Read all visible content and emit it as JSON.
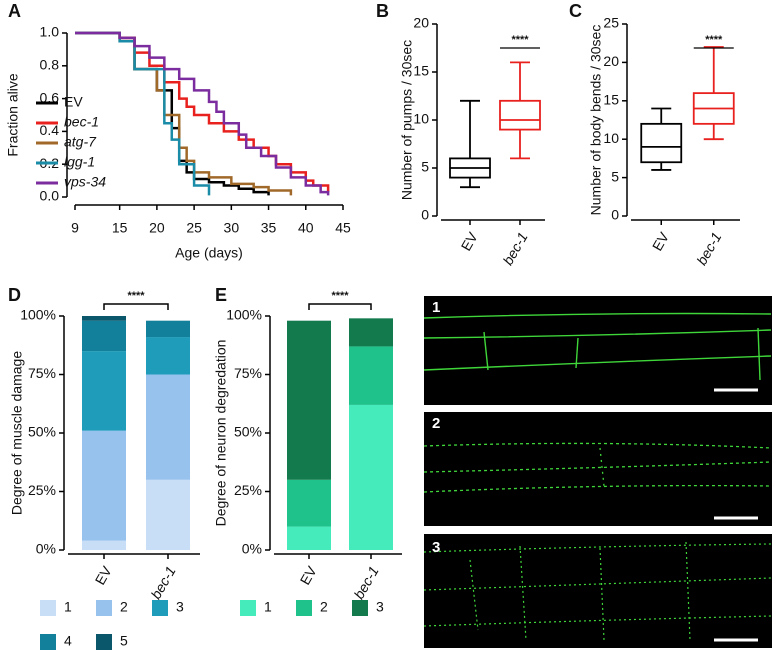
{
  "chart_data": [
    {
      "type": "line",
      "label": "A",
      "x_label": "Age (days)",
      "y_label": "Fraction alive",
      "xlim": [
        9,
        45
      ],
      "xticks": [
        9,
        15,
        20,
        25,
        30,
        35,
        40,
        45
      ],
      "ylim": [
        0,
        1
      ],
      "yticks": [
        {
          "value": 0,
          "label": "0.0"
        },
        {
          "value": 0.2,
          "label": "0.2"
        },
        {
          "value": 0.4,
          "label": "0.4"
        },
        {
          "value": 0.6,
          "label": "0.6"
        },
        {
          "value": 0.8,
          "label": "0.8"
        },
        {
          "value": 1,
          "label": "1.0"
        }
      ],
      "legend": "left",
      "series": [
        {
          "name": "EV",
          "color": "#000000",
          "x": [
            9,
            15,
            17,
            20,
            22,
            23,
            24,
            25,
            27,
            29,
            31,
            33,
            35
          ],
          "values": [
            1,
            0.97,
            0.78,
            0.65,
            0.42,
            0.22,
            0.15,
            0.11,
            0.09,
            0.07,
            0.05,
            0.03,
            0.01
          ]
        },
        {
          "name": "bec-1",
          "color": "#e8201e",
          "x": [
            9,
            15,
            17,
            19,
            21,
            23,
            24,
            25,
            27,
            29,
            31,
            33,
            35,
            36,
            38,
            40,
            41,
            43
          ],
          "values": [
            1,
            0.97,
            0.88,
            0.8,
            0.7,
            0.6,
            0.55,
            0.5,
            0.45,
            0.4,
            0.35,
            0.3,
            0.25,
            0.2,
            0.15,
            0.1,
            0.07,
            0.03
          ]
        },
        {
          "name": "atg-7",
          "color": "#a0692a",
          "x": [
            9,
            15,
            17,
            20,
            21,
            23,
            24,
            25,
            27,
            30,
            33,
            35,
            38
          ],
          "values": [
            1,
            0.95,
            0.78,
            0.65,
            0.5,
            0.3,
            0.22,
            0.15,
            0.12,
            0.08,
            0.06,
            0.04,
            0.01
          ]
        },
        {
          "name": "lgg-1",
          "color": "#1a8ca8",
          "x": [
            9,
            15,
            17,
            21,
            22,
            23,
            25,
            27
          ],
          "values": [
            1,
            0.95,
            0.78,
            0.45,
            0.35,
            0.2,
            0.07,
            0.01
          ]
        },
        {
          "name": "vps-34",
          "color": "#7b2c9e",
          "x": [
            9,
            15,
            17,
            19,
            21,
            23,
            25,
            27,
            28,
            29,
            31,
            32,
            34,
            36,
            38,
            40,
            42,
            43
          ],
          "values": [
            1,
            0.97,
            0.92,
            0.85,
            0.78,
            0.72,
            0.65,
            0.58,
            0.52,
            0.45,
            0.38,
            0.3,
            0.25,
            0.18,
            0.12,
            0.07,
            0.03,
            0.01
          ]
        }
      ]
    },
    {
      "type": "box",
      "label": "B",
      "y_label": "Number of pumps / 30sec",
      "categories": [
        "EV",
        "bec-1"
      ],
      "ylim": [
        0,
        20
      ],
      "yticks": [
        0,
        5,
        10,
        15,
        20
      ],
      "annotation": "****",
      "boxes": [
        {
          "color": "#000000",
          "min": 3,
          "q1": 4,
          "median": 5,
          "q3": 6,
          "max": 12
        },
        {
          "color": "#e8201e",
          "min": 6,
          "q1": 9,
          "median": 10,
          "q3": 12,
          "max": 16
        }
      ]
    },
    {
      "type": "box",
      "label": "C",
      "y_label": "Number of body bends / 30sec",
      "categories": [
        "EV",
        "bec-1"
      ],
      "ylim": [
        0,
        25
      ],
      "yticks": [
        0,
        5,
        10,
        15,
        20,
        25
      ],
      "annotation": "****",
      "boxes": [
        {
          "color": "#000000",
          "min": 6,
          "q1": 7,
          "median": 9,
          "q3": 12,
          "max": 14
        },
        {
          "color": "#e8201e",
          "min": 10,
          "q1": 12,
          "median": 14,
          "q3": 16,
          "max": 22
        }
      ]
    },
    {
      "type": "stacked_bar",
      "label": "D",
      "y_label": "Degree of muscle damage",
      "categories": [
        "EV",
        "bec-1"
      ],
      "ylim": [
        0,
        100
      ],
      "yticks": [
        {
          "value": 0,
          "label": "0%"
        },
        {
          "value": 25,
          "label": "25%"
        },
        {
          "value": 50,
          "label": "50%"
        },
        {
          "value": 75,
          "label": "75%"
        },
        {
          "value": 100,
          "label": "100%"
        }
      ],
      "annotation": "****",
      "legend": "bottom",
      "series": [
        {
          "name": "1",
          "color": "#c8ddf6",
          "values": [
            4,
            30
          ]
        },
        {
          "name": "2",
          "color": "#98c2ee",
          "values": [
            47,
            45
          ]
        },
        {
          "name": "3",
          "color": "#1f9cba",
          "values": [
            34,
            16
          ]
        },
        {
          "name": "4",
          "color": "#13809b",
          "values": [
            13,
            7
          ]
        },
        {
          "name": "5",
          "color": "#0a566a",
          "values": [
            2,
            0
          ]
        }
      ]
    },
    {
      "type": "stacked_bar",
      "label": "E",
      "y_label": "Degree of neuron degredation",
      "categories": [
        "EV",
        "bec-1"
      ],
      "ylim": [
        0,
        100
      ],
      "yticks": [
        {
          "value": 0,
          "label": "0%"
        },
        {
          "value": 25,
          "label": "25%"
        },
        {
          "value": 50,
          "label": "50%"
        },
        {
          "value": 75,
          "label": "75%"
        },
        {
          "value": 100,
          "label": "100%"
        }
      ],
      "annotation": "****",
      "legend": "bottom",
      "series": [
        {
          "name": "1",
          "color": "#45ebba",
          "values": [
            10,
            62
          ]
        },
        {
          "name": "2",
          "color": "#1ec28a",
          "values": [
            20,
            25
          ]
        },
        {
          "name": "3",
          "color": "#137a4e",
          "values": [
            68,
            12
          ]
        }
      ]
    }
  ],
  "micrographs": {
    "labels": [
      "1",
      "2",
      "3"
    ]
  }
}
